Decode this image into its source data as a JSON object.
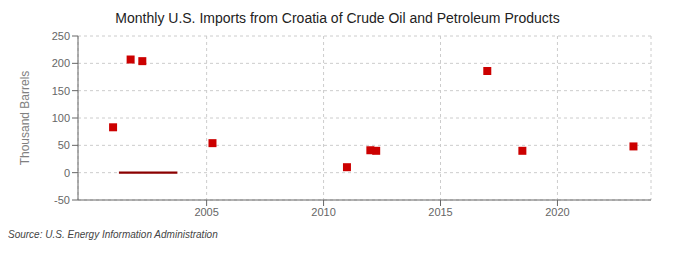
{
  "chart_data": {
    "type": "scatter",
    "title": "Monthly U.S. Imports from Croatia of Crude Oil and Petroleum Products",
    "y_label": "Thousand Barrels",
    "annotations": [
      "Source: U.S. Energy Information Administration"
    ],
    "x": [
      2001.0,
      2001.75,
      2002.25,
      2005.25,
      2011.0,
      2012.0,
      2012.25,
      2017.0,
      2018.5,
      2023.25
    ],
    "values": [
      83,
      207,
      204,
      54,
      10,
      41,
      40,
      186,
      40,
      48
    ],
    "color": "#cc0000",
    "marker": "square",
    "bar_segments": [
      {
        "x_start": 2001.25,
        "x_end": 2003.75,
        "y_bottom": -2,
        "y_top": 2,
        "color": "#8b0000"
      }
    ],
    "xlim": [
      1999.5,
      2024.0
    ],
    "xticks": [
      2005,
      2010,
      2015,
      2020
    ],
    "ylim": [
      -50,
      250
    ],
    "yticks": [
      -50,
      0,
      50,
      100,
      150,
      200,
      250
    ],
    "grid": true
  }
}
